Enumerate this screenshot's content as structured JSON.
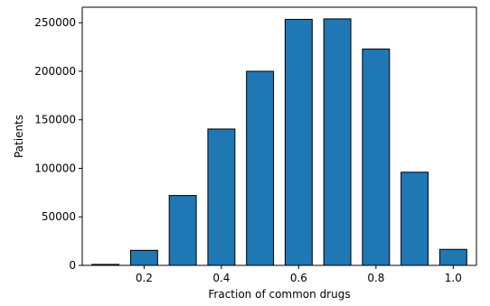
{
  "chart_data": {
    "type": "bar",
    "title": "",
    "xlabel": "Fraction of common drugs",
    "ylabel": "Patients",
    "x": [
      0.1,
      0.2,
      0.3,
      0.4,
      0.5,
      0.6,
      0.7,
      0.8,
      0.9,
      1.0
    ],
    "values": [
      1000,
      15500,
      72000,
      140500,
      200000,
      253500,
      254000,
      223000,
      96000,
      16500
    ],
    "xlim": [
      0.04,
      1.06
    ],
    "ylim": [
      0,
      266000
    ],
    "xticks": [
      0.2,
      0.4,
      0.6,
      0.8,
      1.0
    ],
    "xtick_labels": [
      "0.2",
      "0.4",
      "0.6",
      "0.8",
      "1.0"
    ],
    "yticks": [
      0,
      50000,
      100000,
      150000,
      200000,
      250000
    ],
    "ytick_labels": [
      "0",
      "50000",
      "100000",
      "150000",
      "200000",
      "250000"
    ],
    "bar_width": 0.07,
    "bar_color": "#1f77b4",
    "edge_color": "#000000",
    "grid": false,
    "legend": "none"
  }
}
